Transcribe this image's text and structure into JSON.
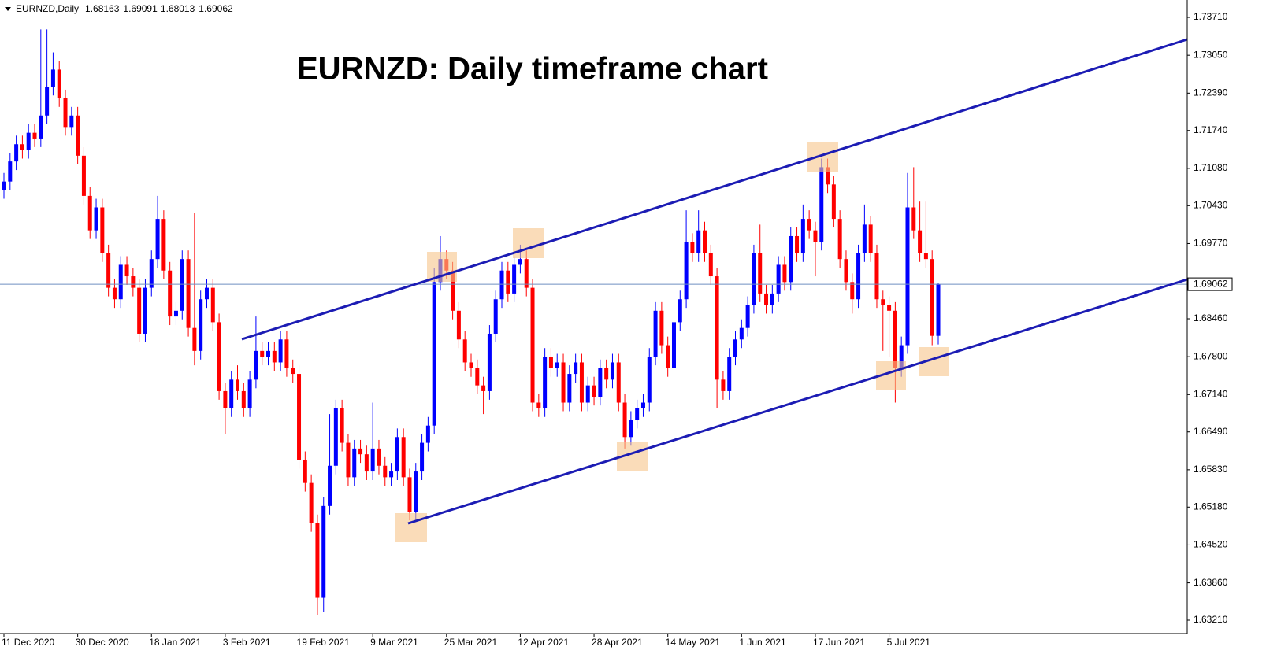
{
  "chart_data": {
    "type": "candlestick",
    "symbol": "EURNZD,Daily",
    "title": "EURNZD: Daily timeframe chart",
    "up_color": "#0000ff",
    "down_color": "#ff0000",
    "price_line_color": "#6f8fc0",
    "categories": [
      "11 Dec 2020",
      null,
      null,
      null,
      null,
      null,
      null,
      null,
      null,
      null,
      null,
      null,
      "30 Dec 2020",
      null,
      null,
      null,
      null,
      null,
      null,
      null,
      null,
      null,
      null,
      null,
      "18 Jan 2021",
      null,
      null,
      null,
      null,
      null,
      null,
      null,
      null,
      null,
      null,
      null,
      "3 Feb 2021",
      null,
      null,
      null,
      null,
      null,
      null,
      null,
      null,
      null,
      null,
      null,
      "19 Feb 2021",
      null,
      null,
      null,
      null,
      null,
      null,
      null,
      null,
      null,
      null,
      null,
      "9 Mar 2021",
      null,
      null,
      null,
      null,
      null,
      null,
      null,
      null,
      null,
      null,
      null,
      "25 Mar 2021",
      null,
      null,
      null,
      null,
      null,
      null,
      null,
      null,
      null,
      null,
      null,
      "12 Apr 2021",
      null,
      null,
      null,
      null,
      null,
      null,
      null,
      null,
      null,
      null,
      null,
      "28 Apr 2021",
      null,
      null,
      null,
      null,
      null,
      null,
      null,
      null,
      null,
      null,
      null,
      "14 May 2021",
      null,
      null,
      null,
      null,
      null,
      null,
      null,
      null,
      null,
      null,
      null,
      "1 Jun 2021",
      null,
      null,
      null,
      null,
      null,
      null,
      null,
      null,
      null,
      null,
      null,
      "17 Jun 2021",
      null,
      null,
      null,
      null,
      null,
      null,
      null,
      null,
      null,
      null,
      null,
      "5 Jul 2021",
      null,
      null,
      null,
      null,
      null,
      null,
      null,
      null
    ],
    "open": [
      1.707,
      1.7085,
      1.712,
      1.715,
      1.714,
      1.717,
      1.716,
      1.72,
      1.725,
      1.728,
      1.723,
      1.718,
      1.72,
      1.713,
      1.706,
      1.7,
      1.704,
      1.696,
      1.69,
      1.688,
      1.694,
      1.692,
      1.69,
      1.682,
      1.69,
      1.695,
      1.702,
      1.693,
      1.685,
      1.686,
      1.695,
      1.683,
      1.679,
      1.688,
      1.69,
      1.684,
      1.672,
      1.669,
      1.674,
      1.672,
      1.669,
      1.674,
      1.679,
      1.678,
      1.679,
      1.677,
      1.681,
      1.676,
      1.675,
      1.66,
      1.656,
      1.649,
      1.636,
      1.652,
      1.659,
      1.669,
      1.663,
      1.657,
      1.662,
      1.661,
      1.658,
      1.662,
      1.659,
      1.657,
      1.658,
      1.664,
      1.657,
      1.651,
      1.658,
      1.663,
      1.666,
      1.691,
      1.695,
      1.693,
      1.686,
      1.681,
      1.677,
      1.676,
      1.673,
      1.672,
      1.682,
      1.688,
      1.693,
      1.689,
      1.694,
      1.695,
      1.69,
      1.67,
      1.669,
      1.678,
      1.676,
      1.677,
      1.67,
      1.675,
      1.677,
      1.67,
      1.673,
      1.671,
      1.676,
      1.674,
      1.677,
      1.67,
      1.664,
      1.667,
      1.669,
      1.67,
      1.678,
      1.686,
      1.68,
      1.676,
      1.684,
      1.688,
      1.698,
      1.696,
      1.7,
      1.696,
      1.692,
      1.674,
      1.672,
      1.678,
      1.681,
      1.683,
      1.687,
      1.696,
      1.689,
      1.687,
      1.689,
      1.694,
      1.691,
      1.699,
      1.696,
      1.702,
      1.7,
      1.698,
      1.711,
      1.708,
      1.702,
      1.695,
      1.691,
      1.688,
      1.696,
      1.701,
      1.696,
      1.688,
      1.687,
      1.686,
      1.676,
      1.68,
      1.704,
      1.7,
      1.696,
      1.695,
      1.68163
    ],
    "high": [
      1.71,
      1.7135,
      1.7165,
      1.7165,
      1.7185,
      1.7185,
      1.735,
      1.735,
      1.731,
      1.7295,
      1.7245,
      1.7215,
      1.7215,
      1.7145,
      1.7075,
      1.7055,
      1.7055,
      1.6975,
      1.6915,
      1.6955,
      1.6955,
      1.6935,
      1.6915,
      1.6915,
      1.6965,
      1.706,
      1.7035,
      1.6945,
      1.6875,
      1.6965,
      1.6965,
      1.703,
      1.6895,
      1.6915,
      1.6915,
      1.6855,
      1.6735,
      1.6755,
      1.6765,
      1.6735,
      1.6755,
      1.685,
      1.6805,
      1.6805,
      1.6805,
      1.6825,
      1.6825,
      1.6775,
      1.6765,
      1.6615,
      1.6575,
      1.6505,
      1.6535,
      1.668,
      1.6705,
      1.6705,
      1.6645,
      1.6635,
      1.6635,
      1.6625,
      1.67,
      1.6635,
      1.6605,
      1.6595,
      1.6655,
      1.6655,
      1.6585,
      1.6595,
      1.6645,
      1.6675,
      1.6935,
      1.699,
      1.6965,
      1.6945,
      1.6875,
      1.6825,
      1.6785,
      1.6775,
      1.6745,
      1.6835,
      1.6895,
      1.6945,
      1.6945,
      1.6955,
      1.6975,
      1.6965,
      1.6915,
      1.6715,
      1.6795,
      1.6795,
      1.6785,
      1.6785,
      1.6765,
      1.6785,
      1.6785,
      1.6745,
      1.6745,
      1.6775,
      1.6775,
      1.6785,
      1.6785,
      1.6715,
      1.6685,
      1.6705,
      1.6715,
      1.6795,
      1.6875,
      1.6875,
      1.6815,
      1.6855,
      1.6895,
      1.7035,
      1.6995,
      1.7035,
      1.7015,
      1.6975,
      1.6935,
      1.6755,
      1.6795,
      1.6825,
      1.6845,
      1.6885,
      1.6975,
      1.701,
      1.6905,
      1.6905,
      1.6955,
      1.6955,
      1.7005,
      1.7005,
      1.7045,
      1.7035,
      1.7015,
      1.7125,
      1.7125,
      1.7095,
      1.7035,
      1.6965,
      1.6925,
      1.6975,
      1.7045,
      1.7025,
      1.6975,
      1.6895,
      1.6885,
      1.6875,
      1.6815,
      1.71,
      1.711,
      1.705,
      1.705,
      1.6965,
      1.69091
    ],
    "low": [
      1.7055,
      1.707,
      1.7105,
      1.7125,
      1.7125,
      1.7145,
      1.7145,
      1.7185,
      1.7235,
      1.7215,
      1.7165,
      1.7165,
      1.7115,
      1.7045,
      1.6985,
      1.6985,
      1.6945,
      1.6885,
      1.6865,
      1.6865,
      1.6905,
      1.6885,
      1.6805,
      1.6805,
      1.6885,
      1.6935,
      1.6915,
      1.6835,
      1.6835,
      1.6845,
      1.6815,
      1.6765,
      1.6775,
      1.6865,
      1.6825,
      1.6705,
      1.6645,
      1.6675,
      1.6705,
      1.6675,
      1.6675,
      1.6725,
      1.6765,
      1.6765,
      1.6755,
      1.6755,
      1.6745,
      1.6735,
      1.6585,
      1.6545,
      1.6475,
      1.633,
      1.6335,
      1.6505,
      1.6575,
      1.6615,
      1.6555,
      1.6555,
      1.6595,
      1.6565,
      1.6565,
      1.6575,
      1.6555,
      1.6555,
      1.6565,
      1.6555,
      1.6495,
      1.6495,
      1.6565,
      1.6615,
      1.6645,
      1.6895,
      1.6915,
      1.6845,
      1.6795,
      1.6755,
      1.6745,
      1.6715,
      1.668,
      1.6705,
      1.6805,
      1.6865,
      1.6875,
      1.6875,
      1.6925,
      1.6885,
      1.6685,
      1.6675,
      1.6675,
      1.6745,
      1.6745,
      1.6685,
      1.6685,
      1.6735,
      1.6685,
      1.6685,
      1.6695,
      1.6695,
      1.6725,
      1.6725,
      1.6685,
      1.662,
      1.6625,
      1.6655,
      1.6675,
      1.6685,
      1.6765,
      1.6785,
      1.6745,
      1.6745,
      1.6825,
      1.6865,
      1.6945,
      1.6945,
      1.6945,
      1.6905,
      1.669,
      1.6705,
      1.6705,
      1.6765,
      1.6795,
      1.6815,
      1.6855,
      1.6875,
      1.6855,
      1.6855,
      1.6875,
      1.6895,
      1.6895,
      1.6945,
      1.6945,
      1.6985,
      1.692,
      1.6965,
      1.7065,
      1.7005,
      1.6935,
      1.6895,
      1.6855,
      1.6865,
      1.6945,
      1.6945,
      1.6865,
      1.679,
      1.678,
      1.67,
      1.6745,
      1.6785,
      1.6985,
      1.6945,
      1.6935,
      1.68,
      1.68013
    ],
    "close": [
      1.7085,
      1.712,
      1.715,
      1.714,
      1.717,
      1.716,
      1.72,
      1.725,
      1.728,
      1.723,
      1.718,
      1.72,
      1.713,
      1.706,
      1.7,
      1.704,
      1.696,
      1.69,
      1.688,
      1.694,
      1.692,
      1.69,
      1.682,
      1.69,
      1.695,
      1.702,
      1.693,
      1.685,
      1.686,
      1.695,
      1.683,
      1.679,
      1.688,
      1.69,
      1.684,
      1.672,
      1.669,
      1.674,
      1.672,
      1.669,
      1.674,
      1.679,
      1.678,
      1.679,
      1.677,
      1.681,
      1.676,
      1.675,
      1.66,
      1.656,
      1.649,
      1.636,
      1.652,
      1.659,
      1.669,
      1.663,
      1.657,
      1.662,
      1.661,
      1.658,
      1.662,
      1.659,
      1.657,
      1.658,
      1.664,
      1.657,
      1.651,
      1.658,
      1.663,
      1.666,
      1.691,
      1.695,
      1.693,
      1.686,
      1.681,
      1.677,
      1.676,
      1.673,
      1.672,
      1.682,
      1.688,
      1.693,
      1.689,
      1.694,
      1.695,
      1.69,
      1.67,
      1.669,
      1.678,
      1.676,
      1.677,
      1.67,
      1.675,
      1.677,
      1.67,
      1.673,
      1.671,
      1.676,
      1.674,
      1.677,
      1.67,
      1.664,
      1.667,
      1.669,
      1.67,
      1.678,
      1.686,
      1.68,
      1.676,
      1.684,
      1.688,
      1.698,
      1.696,
      1.7,
      1.696,
      1.692,
      1.674,
      1.672,
      1.678,
      1.681,
      1.683,
      1.687,
      1.696,
      1.689,
      1.687,
      1.689,
      1.694,
      1.691,
      1.699,
      1.696,
      1.702,
      1.7,
      1.698,
      1.711,
      1.708,
      1.702,
      1.695,
      1.691,
      1.688,
      1.696,
      1.701,
      1.696,
      1.688,
      1.687,
      1.686,
      1.676,
      1.68,
      1.704,
      1.7,
      1.696,
      1.695,
      1.68163,
      1.69062
    ],
    "ylim": [
      1.62977,
      1.74012
    ],
    "yticks": [
      {
        "value": 1.7371,
        "label": "1.73710"
      },
      {
        "value": 1.7305,
        "label": "1.73050"
      },
      {
        "value": 1.7239,
        "label": "1.72390"
      },
      {
        "value": 1.7174,
        "label": "1.71740"
      },
      {
        "value": 1.7108,
        "label": "1.71080"
      },
      {
        "value": 1.7043,
        "label": "1.70430"
      },
      {
        "value": 1.6977,
        "label": "1.69770"
      },
      {
        "value": 1.6846,
        "label": "1.68460"
      },
      {
        "value": 1.678,
        "label": "1.67800"
      },
      {
        "value": 1.6714,
        "label": "1.67140"
      },
      {
        "value": 1.6649,
        "label": "1.66490"
      },
      {
        "value": 1.6583,
        "label": "1.65830"
      },
      {
        "value": 1.6518,
        "label": "1.65180"
      },
      {
        "value": 1.6452,
        "label": "1.64520"
      },
      {
        "value": 1.6386,
        "label": "1.63860"
      },
      {
        "value": 1.6321,
        "label": "1.63210"
      }
    ]
  }
}
